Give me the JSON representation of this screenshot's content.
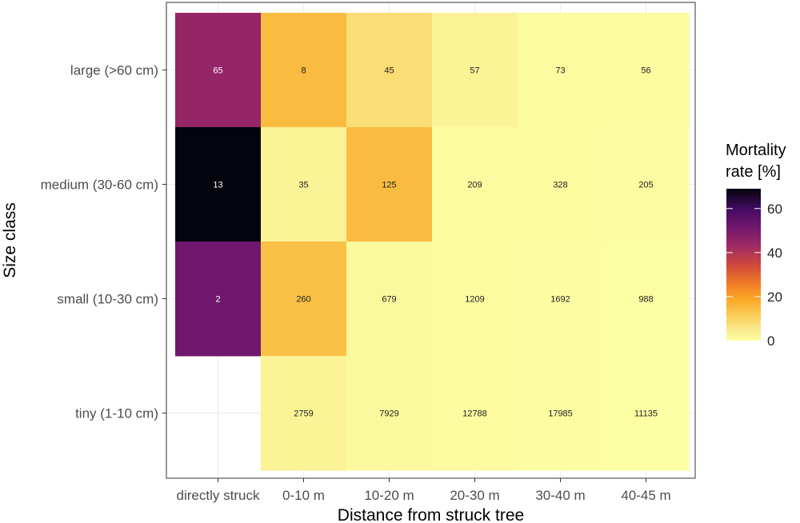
{
  "chart_data": {
    "type": "heatmap",
    "xlabel": "Distance from struck tree",
    "ylabel": "Size class",
    "x_categories": [
      "directly struck",
      "0-10 m",
      "10-20 m",
      "20-30 m",
      "30-40 m",
      "40-45 m"
    ],
    "y_categories": [
      "large (>60 cm)",
      "medium (30-60 cm)",
      "small (10-30 cm)",
      "tiny (1-10 cm)"
    ],
    "cells": [
      {
        "x": "directly struck",
        "y": "large (>60 cm)",
        "mortality": 45,
        "n": "65"
      },
      {
        "x": "0-10 m",
        "y": "large (>60 cm)",
        "mortality": 15,
        "n": "8"
      },
      {
        "x": "10-20 m",
        "y": "large (>60 cm)",
        "mortality": 8,
        "n": "45"
      },
      {
        "x": "20-30 m",
        "y": "large (>60 cm)",
        "mortality": 3,
        "n": "57"
      },
      {
        "x": "30-40 m",
        "y": "large (>60 cm)",
        "mortality": 1,
        "n": "73"
      },
      {
        "x": "40-45 m",
        "y": "large (>60 cm)",
        "mortality": 1,
        "n": "56"
      },
      {
        "x": "directly struck",
        "y": "medium (30-60 cm)",
        "mortality": 69,
        "n": "13"
      },
      {
        "x": "0-10 m",
        "y": "medium (30-60 cm)",
        "mortality": 3,
        "n": "35"
      },
      {
        "x": "10-20 m",
        "y": "medium (30-60 cm)",
        "mortality": 15,
        "n": "125"
      },
      {
        "x": "20-30 m",
        "y": "medium (30-60 cm)",
        "mortality": 1,
        "n": "209"
      },
      {
        "x": "30-40 m",
        "y": "medium (30-60 cm)",
        "mortality": 1,
        "n": "328"
      },
      {
        "x": "40-45 m",
        "y": "medium (30-60 cm)",
        "mortality": 0.5,
        "n": "205"
      },
      {
        "x": "directly struck",
        "y": "small (10-30 cm)",
        "mortality": 52,
        "n": "2"
      },
      {
        "x": "0-10 m",
        "y": "small (10-30 cm)",
        "mortality": 14,
        "n": "260"
      },
      {
        "x": "10-20 m",
        "y": "small (10-30 cm)",
        "mortality": 1.5,
        "n": "679"
      },
      {
        "x": "20-30 m",
        "y": "small (10-30 cm)",
        "mortality": 1,
        "n": "1209"
      },
      {
        "x": "30-40 m",
        "y": "small (10-30 cm)",
        "mortality": 0.5,
        "n": "1692"
      },
      {
        "x": "40-45 m",
        "y": "small (10-30 cm)",
        "mortality": 0.3,
        "n": "988"
      },
      {
        "x": "0-10 m",
        "y": "tiny (1-10 cm)",
        "mortality": 3,
        "n": "2759"
      },
      {
        "x": "10-20 m",
        "y": "tiny (1-10 cm)",
        "mortality": 1.5,
        "n": "7929"
      },
      {
        "x": "20-30 m",
        "y": "tiny (1-10 cm)",
        "mortality": 1,
        "n": "12788"
      },
      {
        "x": "30-40 m",
        "y": "tiny (1-10 cm)",
        "mortality": 0.5,
        "n": "17985"
      },
      {
        "x": "40-45 m",
        "y": "tiny (1-10 cm)",
        "mortality": 0.3,
        "n": "11135"
      }
    ],
    "legend": {
      "title_line1": "Mortality",
      "title_line2": "rate [%]",
      "range": [
        0,
        69
      ],
      "ticks": [
        0,
        20,
        40,
        60
      ],
      "colormap": "inferno (reversed)"
    },
    "grid": true,
    "theme": "bw"
  }
}
